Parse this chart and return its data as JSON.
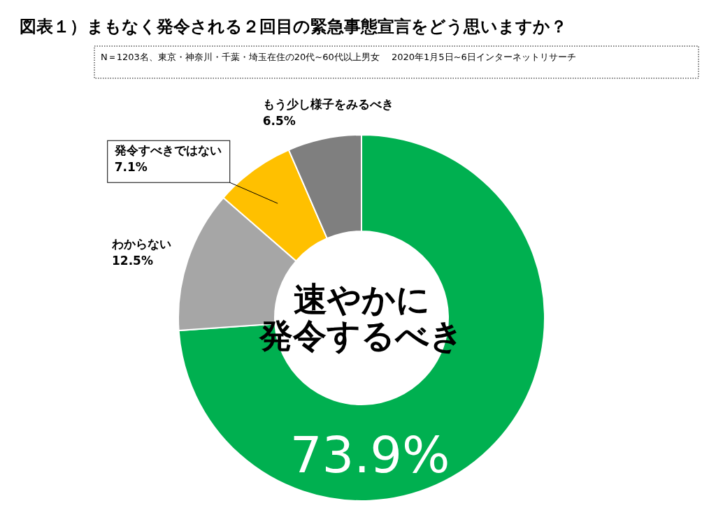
{
  "chart_data": {
    "type": "donut",
    "title": "図表１）まもなく発令される２回目の緊急事態宣言をどう思いますか？",
    "annotations": [
      "N＝1203名、東京・神奈川・千葉・埼玉在住の20代~60代以上男女　 2020年1月5日~6日インターネットリサーチ"
    ],
    "categories": [
      "速やかに発令するべき",
      "わからない",
      "発令すべきではない",
      "もう少し様子をみるべき"
    ],
    "values": [
      73.9,
      12.5,
      7.1,
      6.5
    ],
    "colors": [
      "#00b050",
      "#a6a6a6",
      "#ffc000",
      "#7f7f7f"
    ],
    "value_labels": [
      "73.9%",
      "12.5%",
      "7.1%",
      "6.5%"
    ]
  }
}
